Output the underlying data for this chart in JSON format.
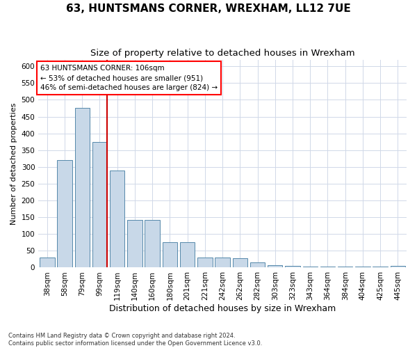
{
  "title": "63, HUNTSMANS CORNER, WREXHAM, LL12 7UE",
  "subtitle": "Size of property relative to detached houses in Wrexham",
  "xlabel": "Distribution of detached houses by size in Wrexham",
  "ylabel": "Number of detached properties",
  "categories": [
    "38sqm",
    "58sqm",
    "79sqm",
    "99sqm",
    "119sqm",
    "140sqm",
    "160sqm",
    "180sqm",
    "201sqm",
    "221sqm",
    "242sqm",
    "262sqm",
    "282sqm",
    "303sqm",
    "323sqm",
    "343sqm",
    "364sqm",
    "384sqm",
    "404sqm",
    "425sqm",
    "445sqm"
  ],
  "values": [
    30,
    320,
    475,
    375,
    290,
    143,
    143,
    75,
    75,
    30,
    30,
    27,
    15,
    8,
    5,
    4,
    4,
    4,
    4,
    4,
    5
  ],
  "bar_color": "#c8d8e8",
  "bar_edge_color": "#5588aa",
  "grid_color": "#d0d8e8",
  "annotation_box_text": "63 HUNTSMANS CORNER: 106sqm\n← 53% of detached houses are smaller (951)\n46% of semi-detached houses are larger (824) →",
  "vline_color": "#cc0000",
  "ylim": [
    0,
    620
  ],
  "yticks": [
    0,
    50,
    100,
    150,
    200,
    250,
    300,
    350,
    400,
    450,
    500,
    550,
    600
  ],
  "title_fontsize": 11,
  "subtitle_fontsize": 9.5,
  "xlabel_fontsize": 9,
  "ylabel_fontsize": 8,
  "tick_fontsize": 7.5,
  "annotation_fontsize": 7.5,
  "footer_text": "Contains HM Land Registry data © Crown copyright and database right 2024.\nContains public sector information licensed under the Open Government Licence v3.0.",
  "background_color": "#ffffff"
}
